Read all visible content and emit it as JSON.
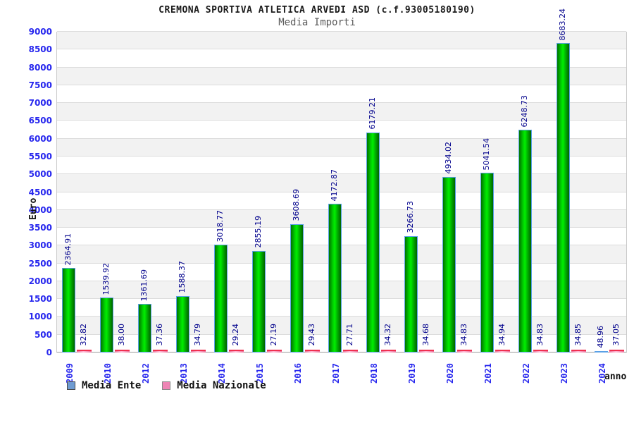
{
  "header": {
    "title": "CREMONA SPORTIVA ATLETICA ARVEDI ASD (c.f.93005180190)",
    "subtitle": "Media Importi"
  },
  "axis": {
    "y_label": "Euro",
    "x_label": "anno"
  },
  "legend": {
    "ente": {
      "label": "Media Ente",
      "swatch_color": "#6e9bd1",
      "swatch_border": "#4a4a4a"
    },
    "nazionale": {
      "label": "Media Nazionale",
      "swatch_color": "#ee85b5",
      "swatch_border": "#8a8a8a"
    }
  },
  "chart_data": {
    "type": "bar",
    "title": "Media Importi",
    "xlabel": "anno",
    "ylabel": "Euro",
    "ylim": [
      0,
      9000
    ],
    "y_step": 500,
    "grid": true,
    "legend_position": "bottom-left",
    "categories": [
      "2009",
      "2010",
      "2012",
      "2013",
      "2014",
      "2015",
      "2016",
      "2017",
      "2018",
      "2019",
      "2020",
      "2021",
      "2022",
      "2023",
      "2024"
    ],
    "series": [
      {
        "name": "Media Ente",
        "values": [
          2364.91,
          1539.92,
          1361.69,
          1588.37,
          3018.77,
          2855.19,
          3608.69,
          4172.87,
          6179.21,
          3266.73,
          4934.02,
          5041.54,
          6248.73,
          8683.24,
          48.96
        ],
        "labels": [
          "2364.91",
          "1539.92",
          "1361.69",
          "1588.37",
          "3018.77",
          "2855.19",
          "3608.69",
          "4172.87",
          "6179.21",
          "3266.73",
          "4934.02",
          "5041.54",
          "6248.73",
          "8683.24",
          "48.96"
        ]
      },
      {
        "name": "Media Nazionale",
        "values": [
          32.82,
          38.0,
          37.36,
          34.79,
          29.24,
          27.19,
          29.43,
          27.71,
          34.32,
          34.68,
          34.83,
          34.94,
          34.83,
          34.85,
          37.05
        ],
        "labels": [
          "32.82",
          "38.00",
          "37.36",
          "34.79",
          "29.24",
          "27.19",
          "29.43",
          "27.71",
          "34.32",
          "34.68",
          "34.83",
          "34.94",
          "34.83",
          "34.85",
          "37.05"
        ]
      }
    ]
  },
  "colors": {
    "bar_green_center": "#00ef00",
    "bar_green_edge": "#006300",
    "bar_green_border": "#5aa0e6",
    "bar_pink_body": "#ffb8d4",
    "bar_pink_top": "#f03050",
    "tick_label": "#2727ee",
    "value_label": "#00008c",
    "band_gray": "#f2f2f2",
    "grid_line": "#dcdcdc"
  }
}
